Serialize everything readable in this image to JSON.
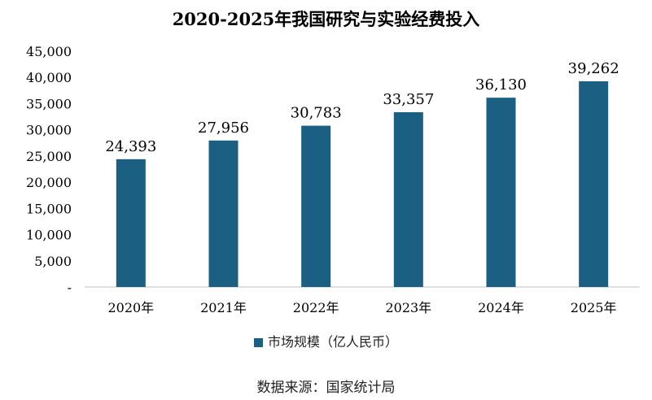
{
  "chart_data": {
    "type": "bar",
    "title": "2020-2025年我国研究与实验经费投入",
    "categories": [
      "2020年",
      "2021年",
      "2022年",
      "2023年",
      "2024年",
      "2025年"
    ],
    "series": [
      {
        "name": "市场规模（亿人民币）",
        "values": [
          24393,
          27956,
          30783,
          33357,
          36130,
          39262
        ]
      }
    ],
    "value_labels": [
      "24,393",
      "27,956",
      "30,783",
      "33,357",
      "36,130",
      "39,262"
    ],
    "ylim": [
      0,
      45000
    ],
    "yticks": [
      0,
      5000,
      10000,
      15000,
      20000,
      25000,
      30000,
      35000,
      40000,
      45000
    ],
    "ytick_labels": [
      "-",
      "5,000",
      "10,000",
      "15,000",
      "20,000",
      "25,000",
      "30,000",
      "35,000",
      "40,000",
      "45,000"
    ],
    "grid": false,
    "legend_position": "bottom",
    "bar_color": "#1b5f82"
  },
  "source": "数据来源：国家统计局"
}
